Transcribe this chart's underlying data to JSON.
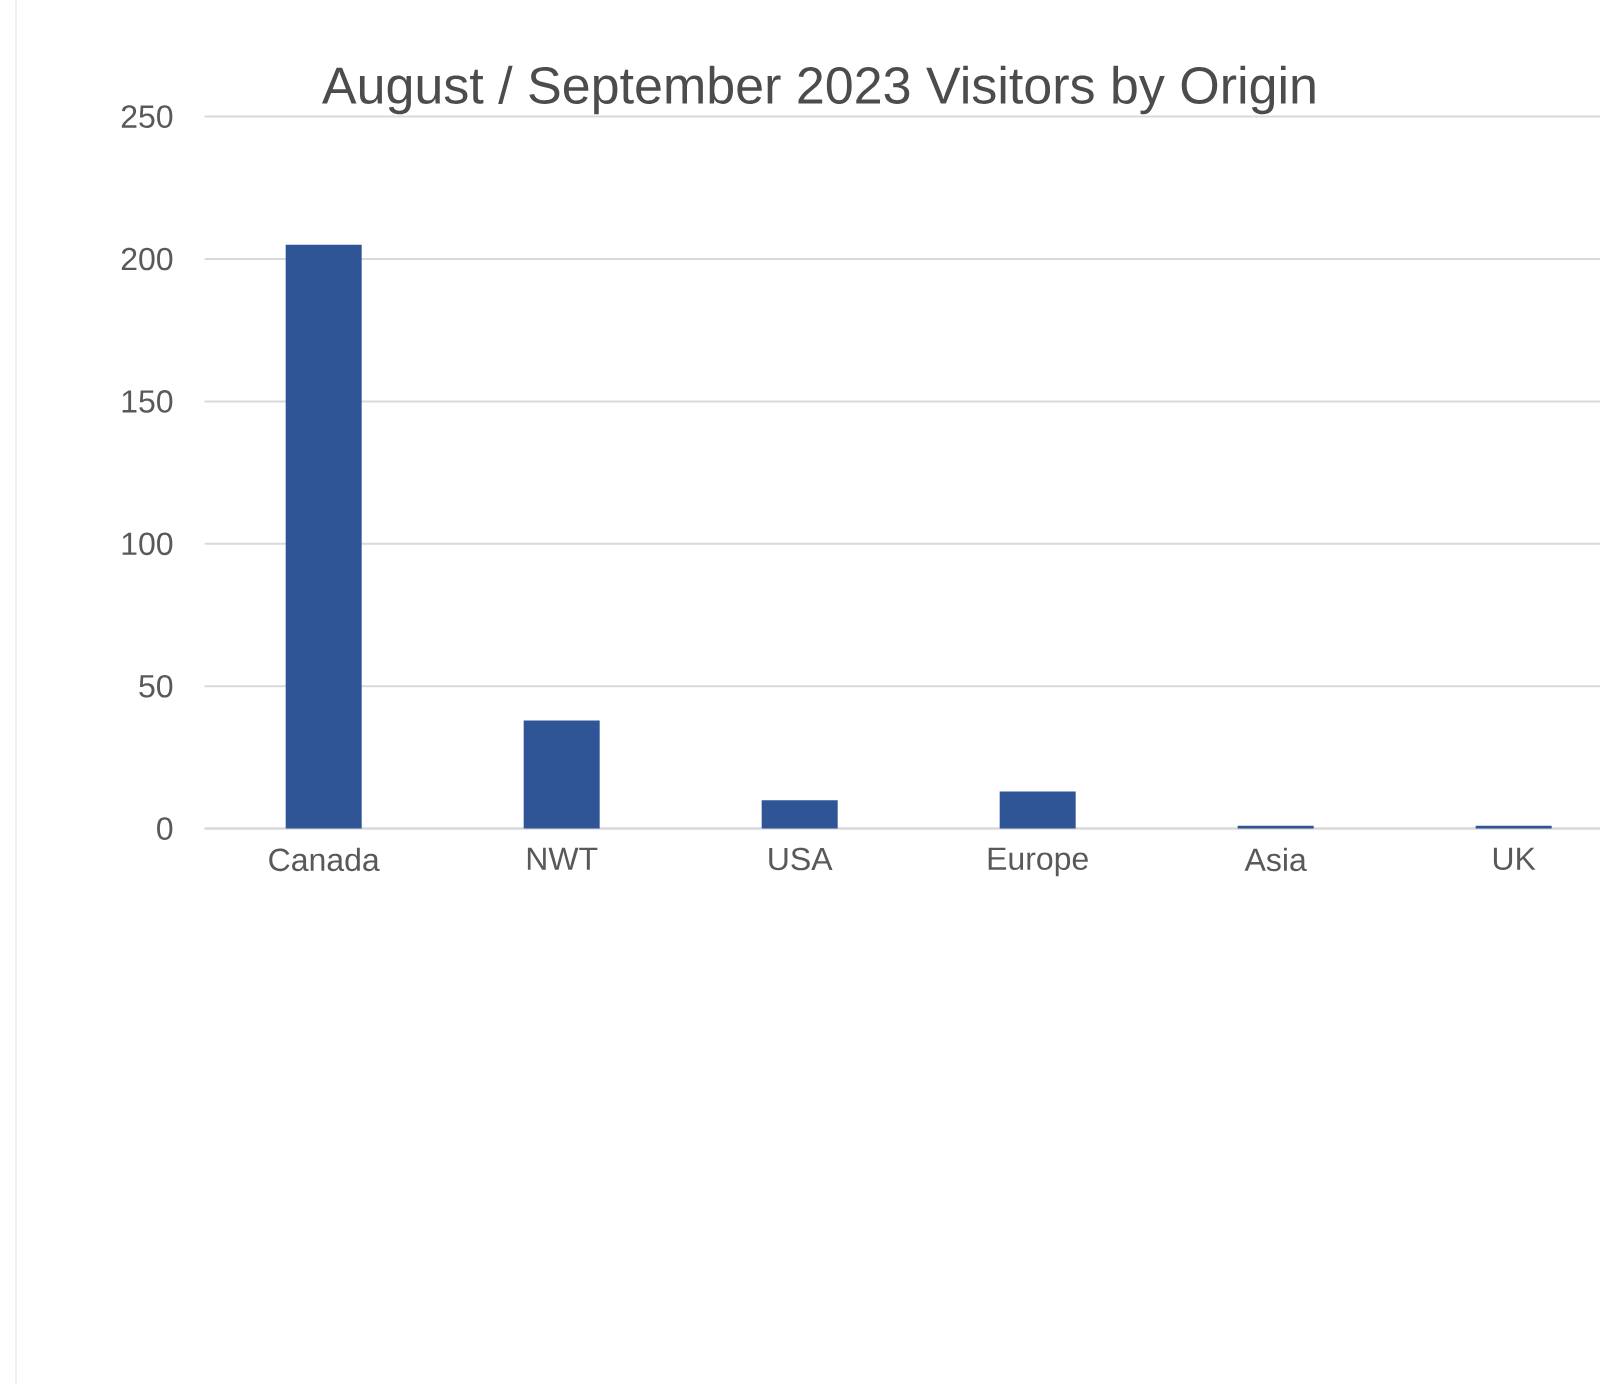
{
  "chart_data": {
    "type": "bar",
    "title": "August / September 2023 Visitors by Origin",
    "categories": [
      "Canada",
      "NWT",
      "USA",
      "Europe",
      "Asia",
      "UK"
    ],
    "values": [
      205,
      38,
      10,
      13,
      1,
      1
    ],
    "color": "#2f5597",
    "ylim": [
      0,
      250
    ],
    "yticks": [
      0,
      50,
      100,
      150,
      200,
      250
    ],
    "grid": "y"
  }
}
